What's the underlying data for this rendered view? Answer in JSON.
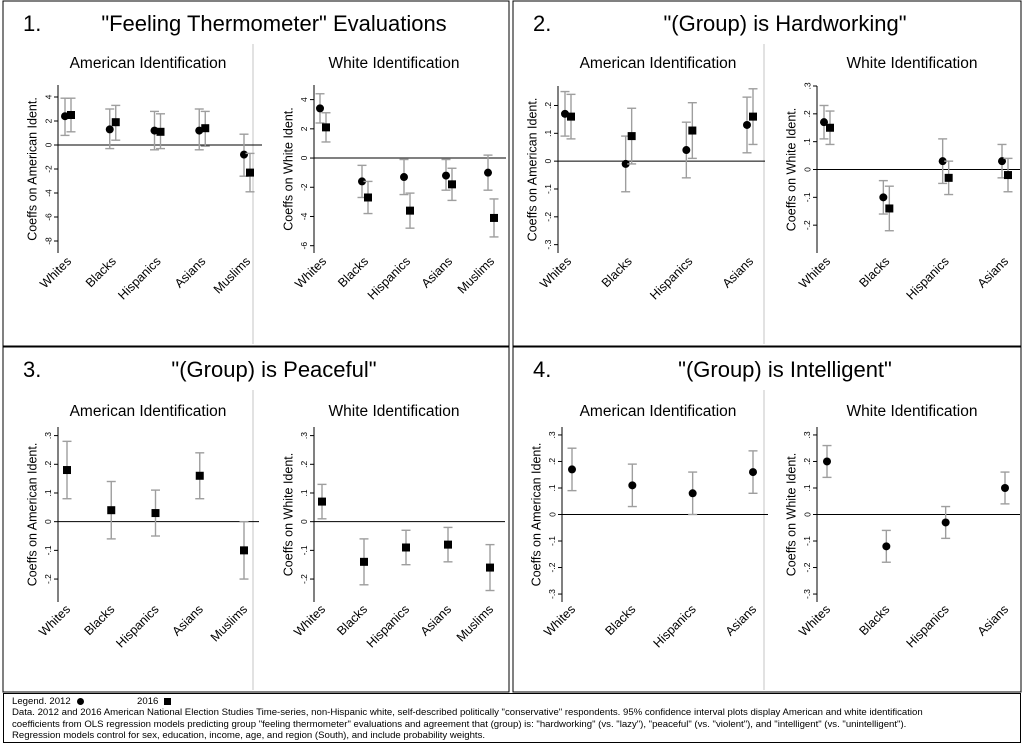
{
  "panels": [
    {
      "number": "1.",
      "title": "\"Feeling Thermometer\" Evaluations",
      "charts": [
        {
          "type": "scatter",
          "title": "American Identification",
          "ylabel": "Coeffs on American Ident.",
          "ylim": [
            -9,
            5
          ],
          "yticks": [
            4,
            2,
            0,
            -2,
            -4,
            -6,
            -8
          ],
          "ytick_labels": [
            "4",
            "2",
            "0",
            "-2",
            "-4",
            "-6",
            "-8"
          ],
          "categories": [
            "Whites",
            "Blacks",
            "Hispanics",
            "Asians",
            "Muslims"
          ],
          "series": [
            {
              "name": "2012",
              "marker": "circle",
              "values": [
                2.4,
                1.3,
                1.2,
                1.2,
                -0.8
              ],
              "ci_low": [
                0.8,
                -0.3,
                -0.4,
                -0.4,
                -2.6
              ],
              "ci_high": [
                3.9,
                3.0,
                2.8,
                3.0,
                0.9
              ]
            },
            {
              "name": "2016",
              "marker": "square",
              "values": [
                2.5,
                1.9,
                1.1,
                1.4,
                -2.3
              ],
              "ci_low": [
                1.1,
                0.4,
                -0.3,
                -0.1,
                -3.9
              ],
              "ci_high": [
                3.9,
                3.3,
                2.6,
                2.8,
                -0.7
              ]
            }
          ]
        },
        {
          "type": "scatter",
          "title": "White Identification",
          "ylabel": "Coeffs on White Ident.",
          "ylim": [
            -6.5,
            5
          ],
          "yticks": [
            4,
            2,
            0,
            -2,
            -4,
            -6
          ],
          "ytick_labels": [
            "4",
            "2",
            "0",
            "-2",
            "-4",
            "-6"
          ],
          "categories": [
            "Whites",
            "Blacks",
            "Hispanics",
            "Asians",
            "Muslims"
          ],
          "series": [
            {
              "name": "2012",
              "marker": "circle",
              "values": [
                3.4,
                -1.6,
                -1.3,
                -1.2,
                -1.0
              ],
              "ci_low": [
                2.4,
                -2.7,
                -2.5,
                -2.2,
                -2.2
              ],
              "ci_high": [
                4.4,
                -0.5,
                -0.1,
                -0.1,
                0.2
              ]
            },
            {
              "name": "2016",
              "marker": "square",
              "values": [
                2.1,
                -2.7,
                -3.6,
                -1.8,
                -4.1
              ],
              "ci_low": [
                1.1,
                -3.8,
                -4.8,
                -2.9,
                -5.4
              ],
              "ci_high": [
                3.1,
                -1.6,
                -2.4,
                -0.7,
                -2.8
              ]
            }
          ]
        }
      ]
    },
    {
      "number": "2.",
      "title": "\"(Group) is Hardworking\"",
      "charts": [
        {
          "type": "scatter",
          "title": "American Identification",
          "ylabel": "Coeffs on American Ident.",
          "ylim": [
            -0.33,
            0.27
          ],
          "yticks": [
            0.2,
            0.1,
            0,
            -0.1,
            -0.2,
            -0.3
          ],
          "ytick_labels": [
            ".2",
            ".1",
            "0",
            "-.1",
            "-.2",
            "-.3"
          ],
          "categories": [
            "Whites",
            "Blacks",
            "Hispanics",
            "Asians"
          ],
          "series": [
            {
              "name": "2012",
              "marker": "circle",
              "values": [
                0.17,
                -0.01,
                0.04,
                0.13
              ],
              "ci_low": [
                0.09,
                -0.11,
                -0.06,
                0.03
              ],
              "ci_high": [
                0.25,
                0.09,
                0.14,
                0.23
              ]
            },
            {
              "name": "2016",
              "marker": "square",
              "values": [
                0.16,
                0.09,
                0.11,
                0.16
              ],
              "ci_low": [
                0.08,
                -0.01,
                0.01,
                0.06
              ],
              "ci_high": [
                0.24,
                0.19,
                0.21,
                0.26
              ]
            }
          ]
        },
        {
          "type": "scatter",
          "title": "White Identification",
          "ylabel": "Coeffs on White Ident.",
          "ylim": [
            -0.3,
            0.3
          ],
          "yticks": [
            0.3,
            0.2,
            0.1,
            0,
            -0.1,
            -0.2
          ],
          "ytick_labels": [
            ".3",
            ".2",
            ".1",
            "0",
            "-.1",
            "-.2"
          ],
          "categories": [
            "Whites",
            "Blacks",
            "Hispanics",
            "Asians"
          ],
          "series": [
            {
              "name": "2012",
              "marker": "circle",
              "values": [
                0.17,
                -0.1,
                0.03,
                0.03
              ],
              "ci_low": [
                0.11,
                -0.16,
                -0.05,
                -0.03
              ],
              "ci_high": [
                0.23,
                -0.04,
                0.11,
                0.09
              ]
            },
            {
              "name": "2016",
              "marker": "square",
              "values": [
                0.15,
                -0.14,
                -0.03,
                -0.02
              ],
              "ci_low": [
                0.09,
                -0.22,
                -0.09,
                -0.08
              ],
              "ci_high": [
                0.21,
                -0.06,
                0.03,
                0.04
              ]
            }
          ]
        }
      ]
    },
    {
      "number": "3.",
      "title": "\"(Group) is Peaceful\"",
      "charts": [
        {
          "type": "scatter",
          "title": "American Identification",
          "ylabel": "Coeffs on American Ident.",
          "ylim": [
            -0.28,
            0.33
          ],
          "yticks": [
            0.3,
            0.2,
            0.1,
            0,
            -0.1,
            -0.2
          ],
          "ytick_labels": [
            ".3",
            ".2",
            ".1",
            "0",
            "-.1",
            "-.2"
          ],
          "categories": [
            "Whites",
            "Blacks",
            "Hispanics",
            "Asians",
            "Muslims"
          ],
          "series": [
            {
              "name": "2016",
              "marker": "square",
              "values": [
                0.18,
                0.04,
                0.03,
                0.16,
                -0.1
              ],
              "ci_low": [
                0.08,
                -0.06,
                -0.05,
                0.08,
                -0.2
              ],
              "ci_high": [
                0.28,
                0.14,
                0.11,
                0.24,
                0.0
              ]
            }
          ]
        },
        {
          "type": "scatter",
          "title": "White Identification",
          "ylabel": "Coeffs on White Ident.",
          "ylim": [
            -0.28,
            0.33
          ],
          "yticks": [
            0.3,
            0.2,
            0.1,
            0,
            -0.1,
            -0.2
          ],
          "ytick_labels": [
            ".3",
            ".2",
            ".1",
            "0",
            "-.1",
            "-.2"
          ],
          "categories": [
            "Whites",
            "Blacks",
            "Hispanics",
            "Asians",
            "Muslims"
          ],
          "series": [
            {
              "name": "2016",
              "marker": "square",
              "values": [
                0.07,
                -0.14,
                -0.09,
                -0.08,
                -0.16
              ],
              "ci_low": [
                0.01,
                -0.22,
                -0.15,
                -0.14,
                -0.24
              ],
              "ci_high": [
                0.13,
                -0.06,
                -0.03,
                -0.02,
                -0.08
              ]
            }
          ]
        }
      ]
    },
    {
      "number": "4.",
      "title": "\"(Group) is Intelligent\"",
      "charts": [
        {
          "type": "scatter",
          "title": "American Identification",
          "ylabel": "Coeffs on American Ident.",
          "ylim": [
            -0.33,
            0.33
          ],
          "yticks": [
            0.3,
            0.2,
            0.1,
            0,
            -0.1,
            -0.2,
            -0.3
          ],
          "ytick_labels": [
            ".3",
            ".2",
            ".1",
            "0",
            "-.1",
            "-.2",
            "-.3"
          ],
          "categories": [
            "Whites",
            "Blacks",
            "Hispanics",
            "Asians"
          ],
          "series": [
            {
              "name": "2012",
              "marker": "circle",
              "values": [
                0.17,
                0.11,
                0.08,
                0.16
              ],
              "ci_low": [
                0.09,
                0.03,
                0.0,
                0.08
              ],
              "ci_high": [
                0.25,
                0.19,
                0.16,
                0.24
              ]
            }
          ]
        },
        {
          "type": "scatter",
          "title": "White Identification",
          "ylabel": "Coeffs on White Ident.",
          "ylim": [
            -0.33,
            0.33
          ],
          "yticks": [
            0.3,
            0.2,
            0.1,
            0,
            -0.1,
            -0.2,
            -0.3
          ],
          "ytick_labels": [
            ".3",
            ".2",
            ".1",
            "0",
            "-.1",
            "-.2",
            "-.3"
          ],
          "categories": [
            "Whites",
            "Blacks",
            "Hispanics",
            "Asians"
          ],
          "series": [
            {
              "name": "2012",
              "marker": "circle",
              "values": [
                0.2,
                -0.12,
                -0.03,
                0.1
              ],
              "ci_low": [
                0.14,
                -0.18,
                -0.09,
                0.04
              ],
              "ci_high": [
                0.26,
                -0.06,
                0.03,
                0.16
              ]
            }
          ]
        }
      ]
    }
  ],
  "legend": {
    "label": "Legend.",
    "entries": [
      {
        "label": "2012",
        "marker": "circle"
      },
      {
        "label": "2016",
        "marker": "square"
      }
    ],
    "note_lines": [
      "Data. 2012 and 2016 American National Election Studies Time-series, non-Hispanic white, self-described politically \"conservative\" respondents. 95% confidence interval plots display American and white identification",
      "coefficients from OLS regression models predicting group \"feeling thermometer\" evaluations and agreement that (group) is: \"hardworking\" (vs. \"lazy\"), \"peaceful\" (vs. \"violent\"), and \"intelligent\" (vs. \"unintelligent\").",
      "Regression models control for sex, education, income, age, and region (South), and include probability weights."
    ]
  },
  "colors": {
    "ci_bar": "#9e9e9e",
    "marker": "#000000",
    "axis": "#000000",
    "divider": "#d9d9d9",
    "border": "#000000"
  }
}
